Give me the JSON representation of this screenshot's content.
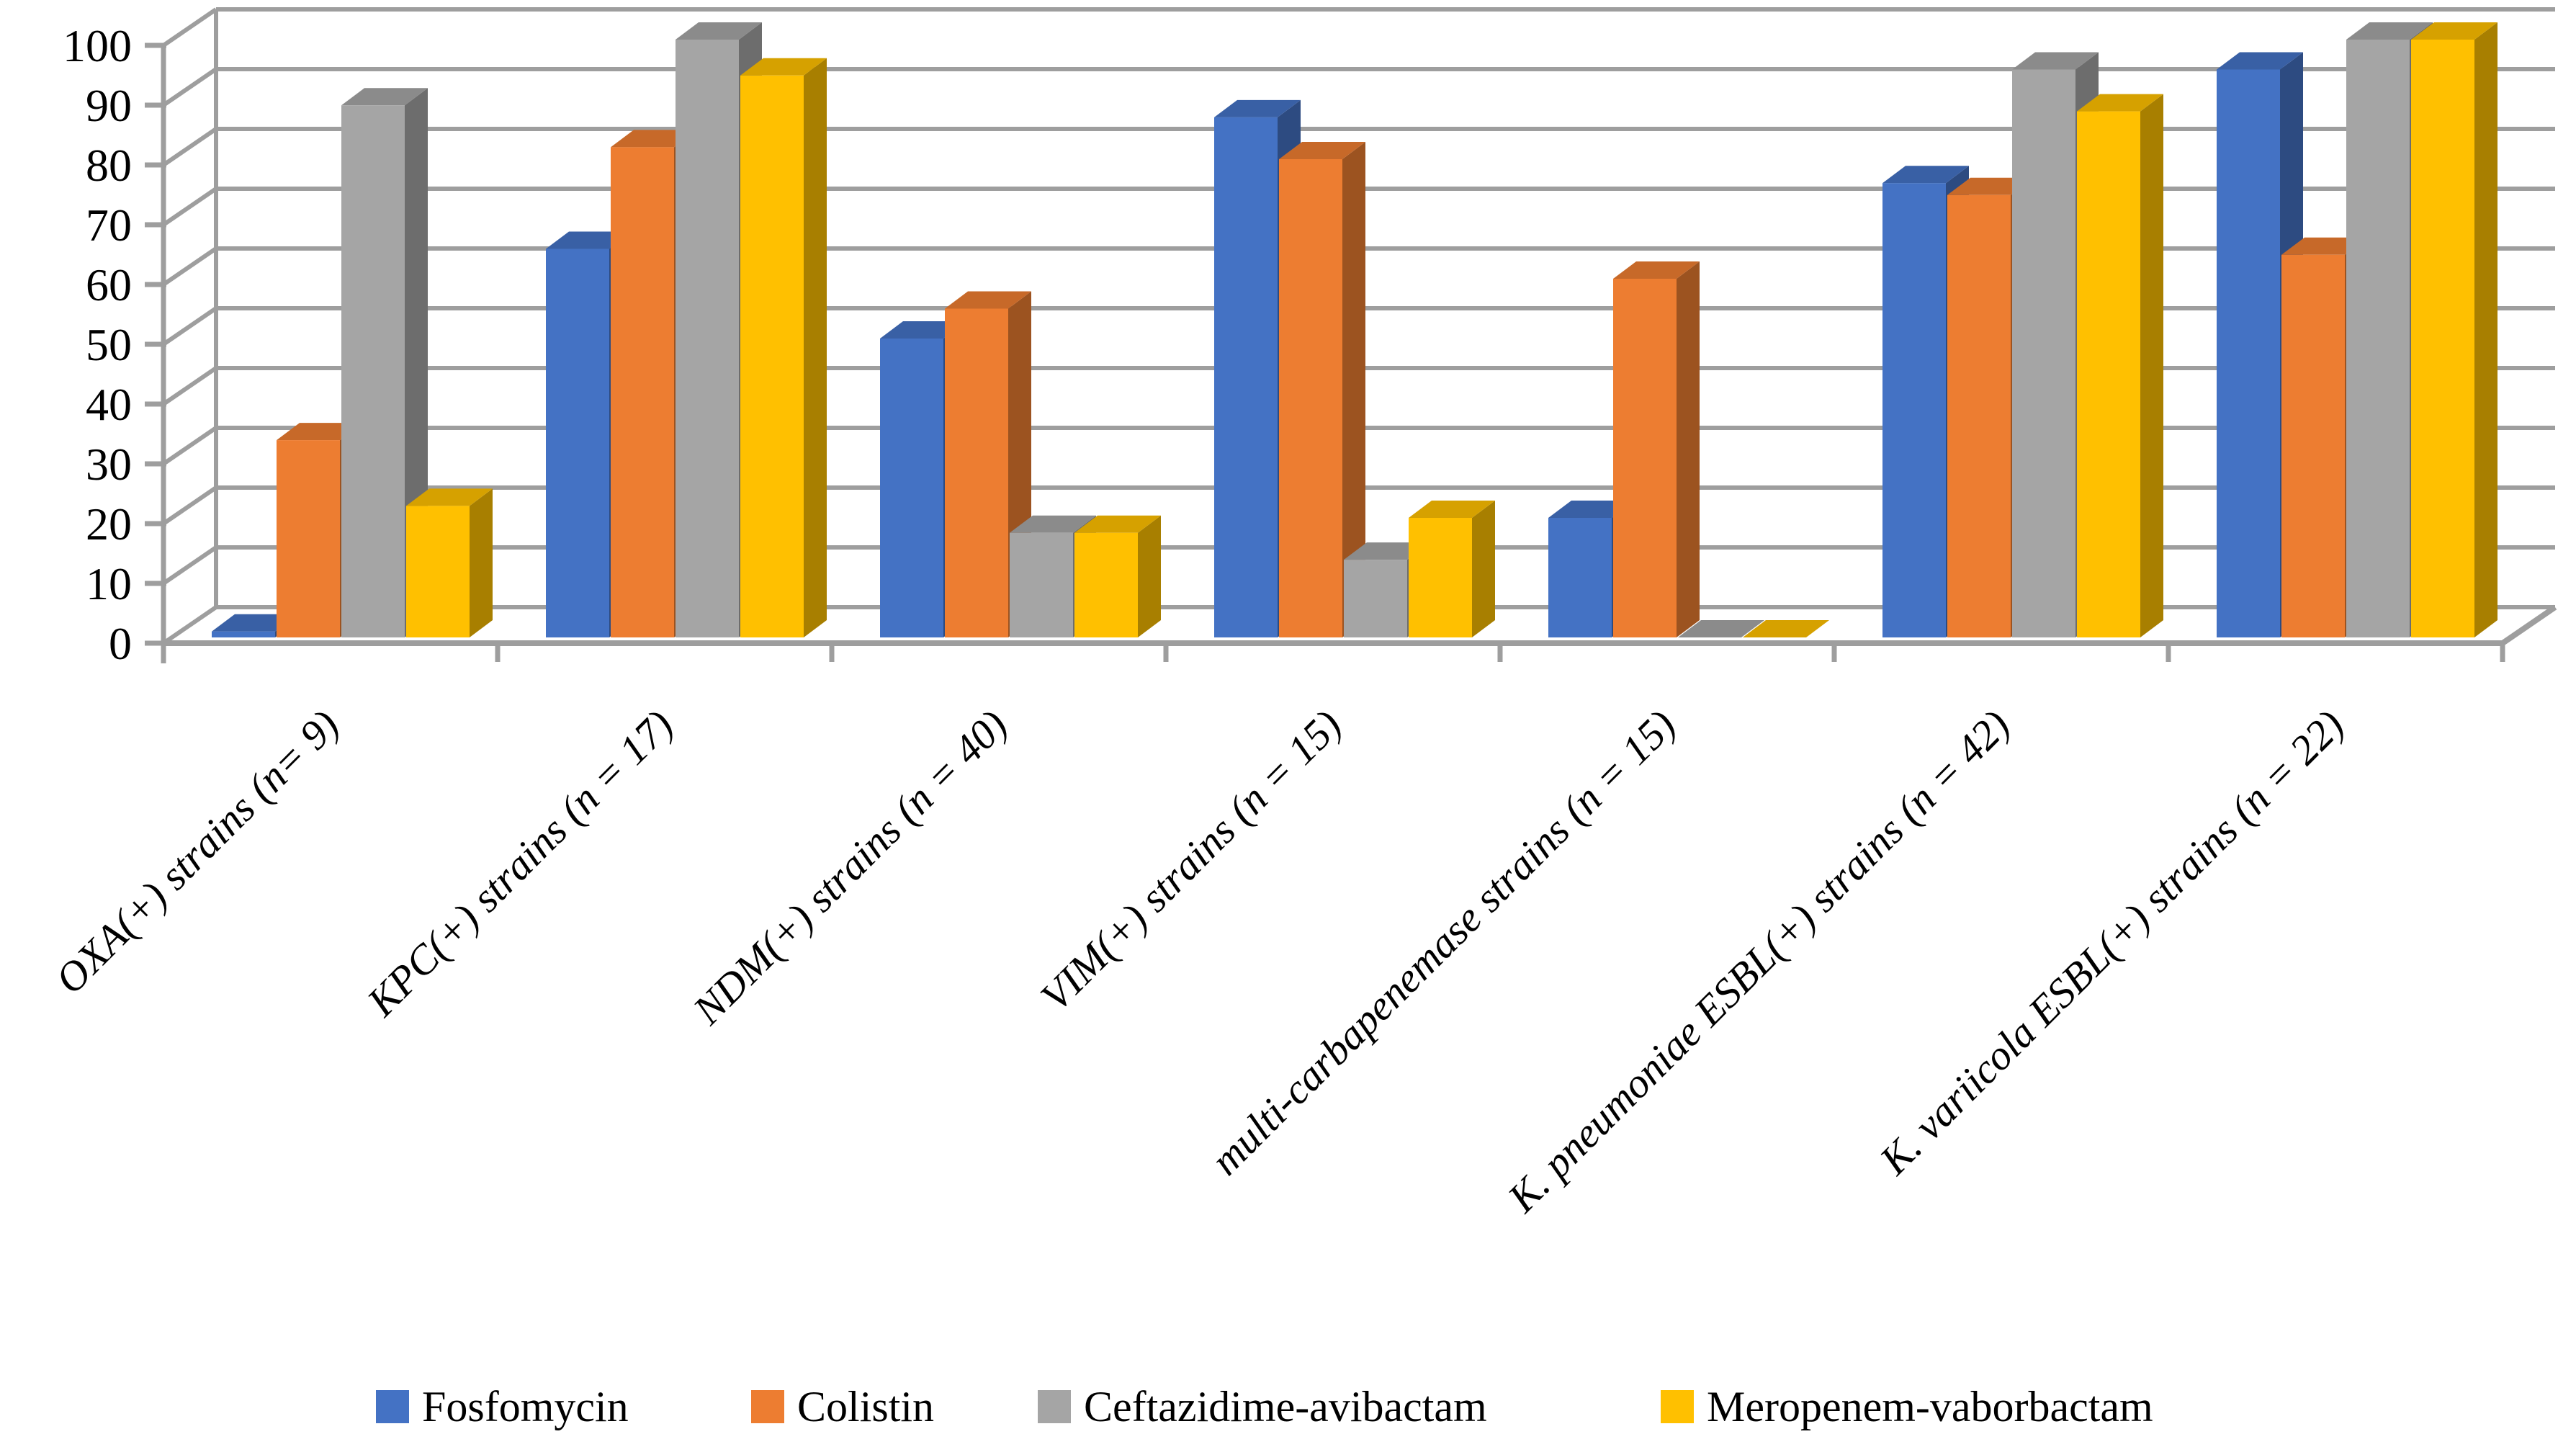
{
  "figure": {
    "background": "#ffffff",
    "kind": "3D clustered column chart"
  },
  "chart_data": {
    "type": "bar",
    "projection": "3d",
    "title": "",
    "xlabel": "",
    "ylabel": "",
    "ylim": [
      0,
      100
    ],
    "ytick_step": 10,
    "yticks": [
      0,
      10,
      20,
      30,
      40,
      50,
      60,
      70,
      80,
      90,
      100
    ],
    "grid": true,
    "legend_position": "bottom",
    "categories": [
      "OXA(+) strains (n= 9)",
      "KPC(+) strains (n = 17)",
      "NDM(+) strains (n = 40)",
      "VIM(+) strains (n = 15)",
      "multi-carbapenemase strains (n = 15)",
      "K. pneumoniae ESBL(+) strains (n = 42)",
      "K. variicola ESBL(+) strains (n = 22)"
    ],
    "series": [
      {
        "name": "Fosfomycin",
        "color": "#4472C4",
        "values": [
          1,
          65,
          50,
          87,
          20,
          76,
          95
        ]
      },
      {
        "name": "Colistin",
        "color": "#ED7D31",
        "values": [
          33,
          82,
          55,
          80,
          60,
          74,
          64
        ]
      },
      {
        "name": "Ceftazidime-avibactam",
        "color": "#A5A5A5",
        "values": [
          89,
          100,
          17.5,
          13,
          0,
          95,
          100
        ]
      },
      {
        "name": "Meropenem-vaborbactam",
        "color": "#FFC000",
        "values": [
          22,
          94,
          17.5,
          20,
          0,
          88,
          100
        ]
      }
    ],
    "grid_color": "#9e9e9e",
    "axis_color": "#9e9e9e",
    "label_color": "#000000"
  }
}
